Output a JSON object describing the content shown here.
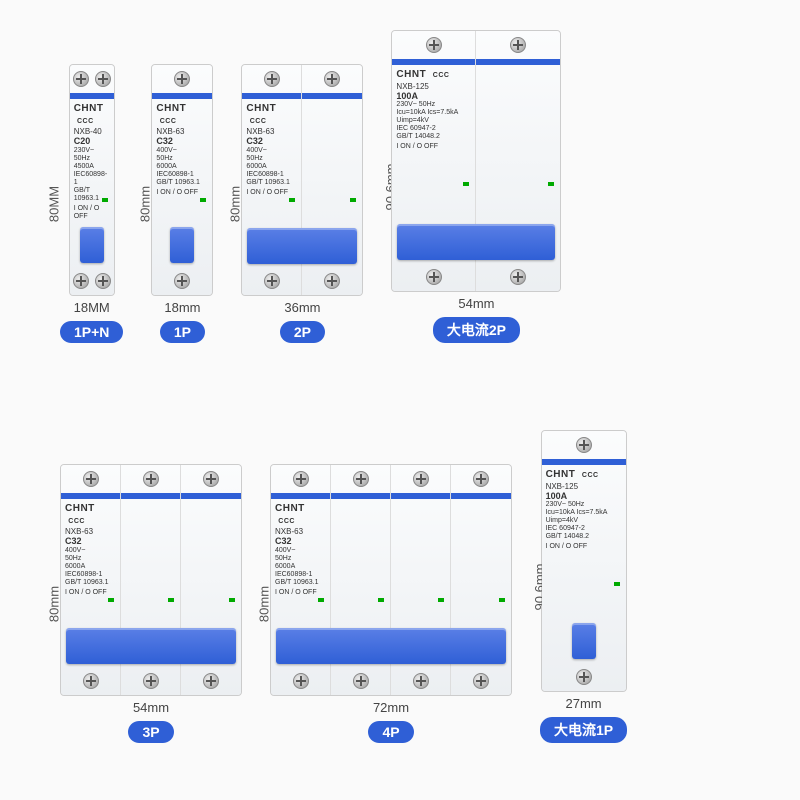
{
  "background_color": "#fafafa",
  "accent_color": "#2f5fd6",
  "brand": "CHNT",
  "cert_mark": "CCC",
  "specs_small": [
    "230V~",
    "50Hz",
    "4500A",
    "IEC60898-1",
    "GB/T 10963.1"
  ],
  "specs_63": [
    "400V~",
    "50Hz",
    "6000A",
    "IEC60898-1",
    "GB/T 10963.1"
  ],
  "specs_125": [
    "230V~ 50Hz",
    "Icu=10kA Ics=7.5kA",
    "Uimp=4kV",
    "IEC 60947-2",
    "GB/T 14048.2"
  ],
  "on_off": "I ON / O OFF",
  "row1": [
    {
      "id": "p1n",
      "poles": 1,
      "pole_w": 44,
      "pole_h": 230,
      "two_screws_per_pole": true,
      "height_label": "80MM",
      "width_label": "18MM",
      "badge": "1P+N",
      "model": "NXB-40",
      "rating": "C20"
    },
    {
      "id": "p1",
      "poles": 1,
      "pole_w": 60,
      "pole_h": 230,
      "height_label": "80mm",
      "width_label": "18mm",
      "badge": "1P",
      "model": "NXB-63",
      "rating": "C32"
    },
    {
      "id": "p2",
      "poles": 2,
      "pole_w": 60,
      "pole_h": 230,
      "bar_toggle": true,
      "height_label": "80mm",
      "width_label": "36mm",
      "badge": "2P",
      "model": "NXB-63",
      "rating": "C32"
    },
    {
      "id": "big2p",
      "poles": 2,
      "pole_w": 84,
      "pole_h": 260,
      "bar_toggle": true,
      "height_label": "90.6mm",
      "width_label": "54mm",
      "badge": "大电流2P",
      "model": "NXB-125",
      "rating": "100A"
    }
  ],
  "row2": [
    {
      "id": "p3",
      "poles": 3,
      "pole_w": 60,
      "pole_h": 230,
      "bar_toggle": true,
      "height_label": "80mm",
      "width_label": "54mm",
      "badge": "3P",
      "model": "NXB-63",
      "rating": "C32"
    },
    {
      "id": "p4",
      "poles": 4,
      "pole_w": 60,
      "pole_h": 230,
      "bar_toggle": true,
      "height_label": "80mm",
      "width_label": "72mm",
      "badge": "4P",
      "model": "NXB-63",
      "rating": "C32"
    },
    {
      "id": "big1p",
      "poles": 1,
      "pole_w": 84,
      "pole_h": 260,
      "height_label": "90.6mm",
      "width_label": "27mm",
      "badge": "大电流1P",
      "model": "NXB-125",
      "rating": "100A"
    }
  ]
}
